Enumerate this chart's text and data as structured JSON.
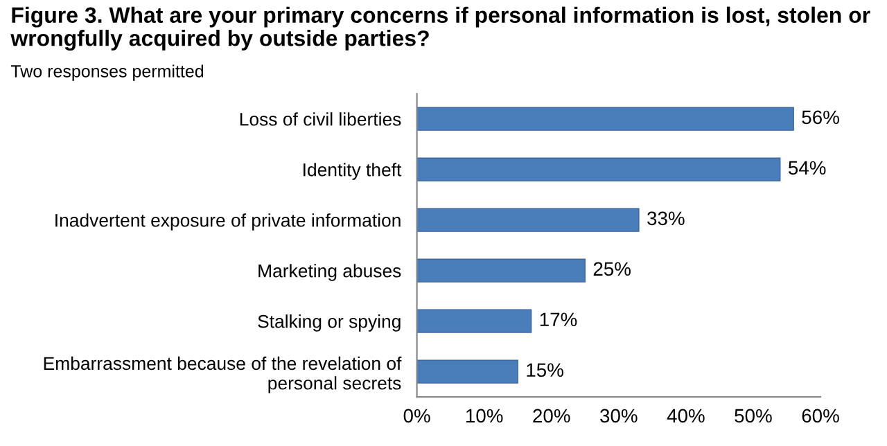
{
  "chart_data": {
    "type": "bar",
    "orientation": "horizontal",
    "title": "Figure 3. What are your primary concerns if personal information is lost, stolen or wrongfully acquired by outside parties?",
    "subtitle": "Two responses permitted",
    "categories": [
      "Loss of civil liberties",
      "Identity theft",
      "Inadvertent exposure of private information",
      "Marketing abuses",
      "Stalking or spying",
      "Embarrassment because of the revelation of\npersonal secrets"
    ],
    "values": [
      56,
      54,
      33,
      25,
      17,
      15
    ],
    "value_labels": [
      "56%",
      "54%",
      "33%",
      "25%",
      "17%",
      "15%"
    ],
    "color": "#4a7ebb",
    "xlim": [
      0,
      60
    ],
    "xticks": [
      {
        "value": 0,
        "label": "0%"
      },
      {
        "value": 10,
        "label": "10%"
      },
      {
        "value": 20,
        "label": "20%"
      },
      {
        "value": 30,
        "label": "30%"
      },
      {
        "value": 40,
        "label": "40%"
      },
      {
        "value": 50,
        "label": "50%"
      },
      {
        "value": 60,
        "label": "60%"
      }
    ],
    "grid": false,
    "legend": false
  }
}
